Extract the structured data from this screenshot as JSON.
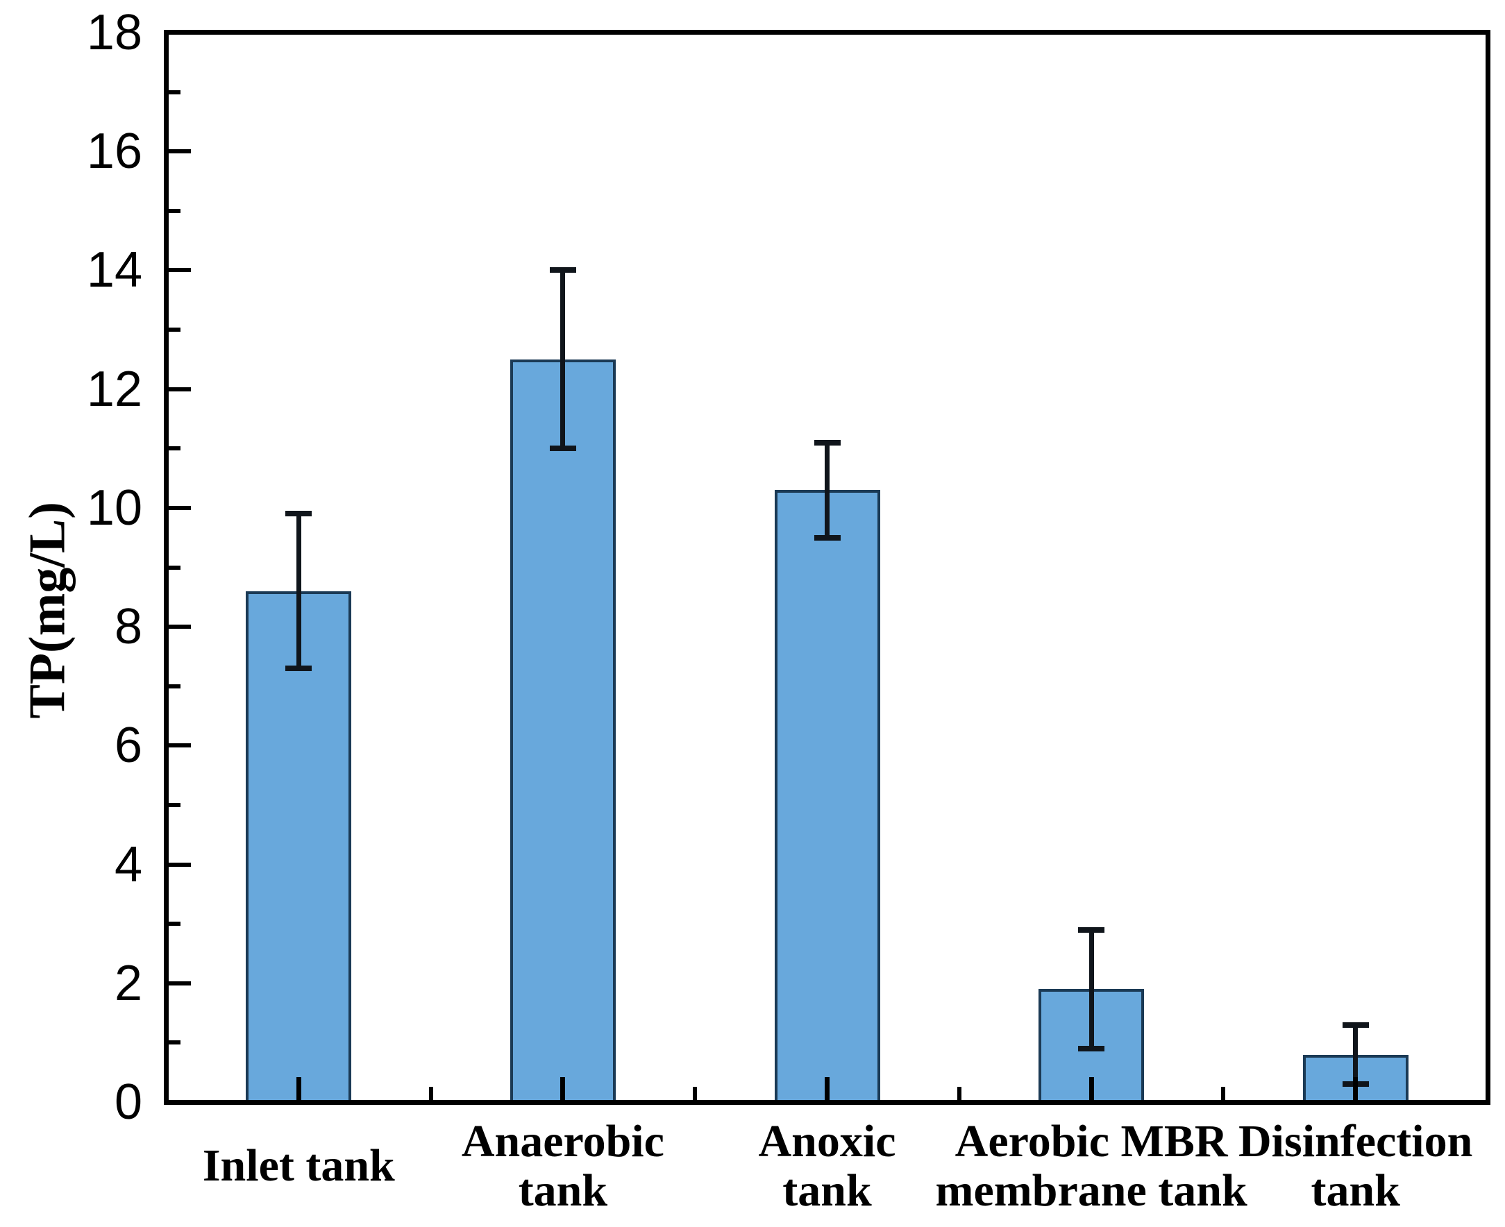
{
  "chart_data": {
    "type": "bar",
    "title": "",
    "ylabel": "TP(mg/L)",
    "xlabel": "",
    "ylim": [
      0,
      18
    ],
    "ytick_step": 2,
    "ytick_minor_step": 1,
    "grid": false,
    "legend_position": "none",
    "categories": [
      "Inlet tank",
      "Anaerobic tank",
      "Anoxic tank",
      "Aerobic MBR membrane tank",
      "Disinfection tank"
    ],
    "category_label_lines": [
      [
        "Inlet tank"
      ],
      [
        "Anaerobic",
        "tank"
      ],
      [
        "Anoxic",
        "tank"
      ],
      [
        "Aerobic MBR",
        "membrane tank"
      ],
      [
        "Disinfection",
        "tank"
      ]
    ],
    "values": [
      8.6,
      12.5,
      10.3,
      1.9,
      0.8
    ],
    "error_minus": [
      1.3,
      1.5,
      0.8,
      1.0,
      0.5
    ],
    "error_plus": [
      1.3,
      1.5,
      0.8,
      1.0,
      0.5
    ],
    "bar_fill_color": "#68a8dc",
    "bar_edge_color": "#1b3a55",
    "error_bar_color": "#10151b",
    "axis_color": "#000000",
    "text_color": "#000000"
  }
}
